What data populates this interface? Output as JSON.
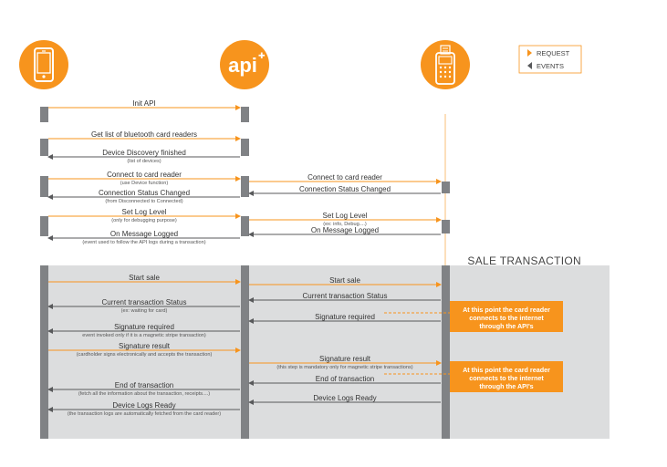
{
  "colors": {
    "accent": "#f7941d",
    "dark": "#58595b",
    "lifeline": "#a6a8ab",
    "panel": "#dcddde",
    "text": "#333333"
  },
  "actors": [
    {
      "id": "phone",
      "icon": "smartphone-icon"
    },
    {
      "id": "api",
      "icon": "api-logo",
      "label": "api"
    },
    {
      "id": "terminal",
      "icon": "card-reader-icon"
    }
  ],
  "legend": {
    "request": "REQUEST",
    "events": "EVENTS"
  },
  "section_title": "SALE TRANSACTION",
  "messages": [
    {
      "from": "phone",
      "to": "api",
      "kind": "request",
      "label": "Init API",
      "sub": ""
    },
    {
      "from": "phone",
      "to": "api",
      "kind": "request",
      "label": "Get list of bluetooth card readers",
      "sub": ""
    },
    {
      "from": "api",
      "to": "phone",
      "kind": "event",
      "label": "Device Discovery finished",
      "sub": "(list of devices)"
    },
    {
      "from": "phone",
      "to": "api",
      "kind": "request",
      "label": "Connect to card reader",
      "sub": "(use Device function)"
    },
    {
      "from": "api",
      "to": "terminal",
      "kind": "request",
      "label": "Connect to card reader",
      "sub": ""
    },
    {
      "from": "terminal",
      "to": "api",
      "kind": "event",
      "label": "Connection Status Changed",
      "sub": ""
    },
    {
      "from": "api",
      "to": "phone",
      "kind": "event",
      "label": "Connection Status Changed",
      "sub": "(from Disconnected to Connected)"
    },
    {
      "from": "phone",
      "to": "api",
      "kind": "request",
      "label": "Set Log Level",
      "sub": "(only for debugging purpose)"
    },
    {
      "from": "api",
      "to": "terminal",
      "kind": "request",
      "label": "Set Log Level",
      "sub": "(ex: info, Debug....)"
    },
    {
      "from": "terminal",
      "to": "api",
      "kind": "event",
      "label": "On Message Logged",
      "sub": ""
    },
    {
      "from": "api",
      "to": "phone",
      "kind": "event",
      "label": "On Message Logged",
      "sub": "(event used to follow the API logs during a transaction)"
    },
    {
      "from": "phone",
      "to": "api",
      "kind": "request",
      "label": "Start sale",
      "sub": ""
    },
    {
      "from": "api",
      "to": "terminal",
      "kind": "request",
      "label": "Start sale",
      "sub": ""
    },
    {
      "from": "terminal",
      "to": "api",
      "kind": "event",
      "label": "Current transaction Status",
      "sub": ""
    },
    {
      "from": "api",
      "to": "phone",
      "kind": "event",
      "label": "Current transaction Status",
      "sub": "(ex: waiting for card)"
    },
    {
      "from": "terminal",
      "to": "api",
      "kind": "event",
      "label": "Signature required",
      "sub": ""
    },
    {
      "from": "api",
      "to": "phone",
      "kind": "event",
      "label": "Signature required",
      "sub": "event invoked only if it is a magnetic stripe transaction)"
    },
    {
      "from": "phone",
      "to": "api",
      "kind": "request",
      "label": "Signature result",
      "sub": "(cardholder signs electronically and accepts the transaction)"
    },
    {
      "from": "api",
      "to": "terminal",
      "kind": "request",
      "label": "Signature result",
      "sub": "(this step is mandatory only for magnetic stripe transactions)"
    },
    {
      "from": "terminal",
      "to": "api",
      "kind": "event",
      "label": "End of transaction",
      "sub": ""
    },
    {
      "from": "api",
      "to": "phone",
      "kind": "event",
      "label": "End of transaction",
      "sub": "(fetch all the information about the transaction, receipts....)"
    },
    {
      "from": "terminal",
      "to": "api",
      "kind": "event",
      "label": "Device Logs Ready",
      "sub": ""
    },
    {
      "from": "api",
      "to": "phone",
      "kind": "event",
      "label": "Device Logs Ready",
      "sub": "(the transaction logs are automatically fetched from the card reader)"
    }
  ],
  "notes": [
    {
      "lines": [
        "At this point the card reader",
        "connects to the internet",
        "through the API's"
      ]
    },
    {
      "lines": [
        "At this point the card reader",
        "connects to the internet",
        "through the API's"
      ]
    }
  ]
}
